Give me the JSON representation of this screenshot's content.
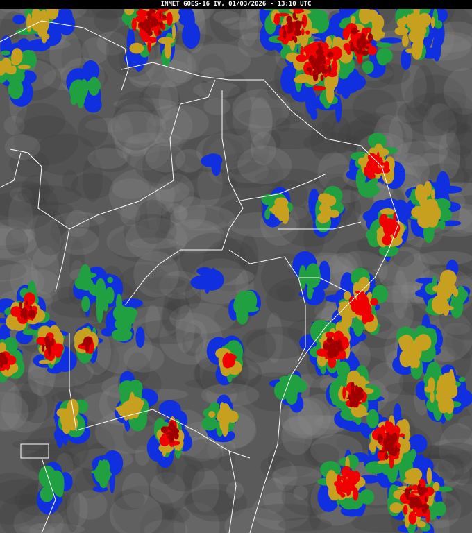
{
  "title": "INMET GOES-16 IV, 01/03/2026 - 13:10 UTC",
  "palette": {
    "background_gray": "#5a5a5a",
    "dark_gray": "#3c3c3c",
    "light_gray": "#8a8a8a",
    "blue": "#1030e0",
    "green": "#20a040",
    "yellow": "#c8a020",
    "red": "#f00000",
    "dark_red": "#a00000",
    "borders": "#ffffff"
  }
}
